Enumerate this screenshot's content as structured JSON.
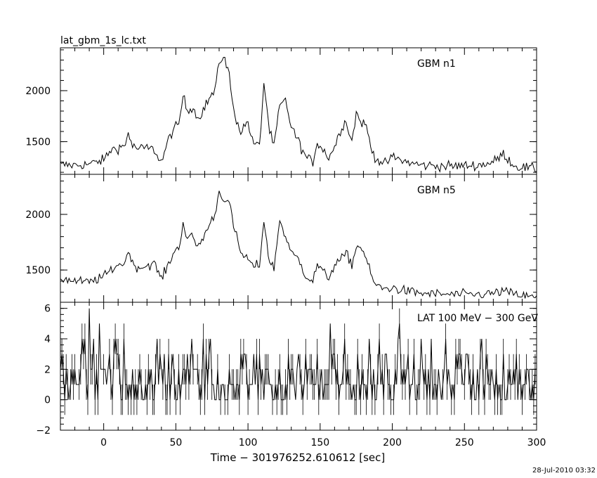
{
  "title": "lat_gbm_1s_lc.txt",
  "xlabel": "Time − 301976252.610612 [sec]",
  "footer_timestamp": "28-Jul-2010 03:32",
  "chart_data": [
    {
      "type": "line",
      "label": "GBM n1",
      "x_range": [
        -30,
        300
      ],
      "ylim": [
        1180,
        2420
      ],
      "yticks": [
        1500,
        2000
      ],
      "ytick_labels": [
        "1500",
        "2000"
      ],
      "x_step": 1,
      "noise": 35,
      "anchors_x": [
        -28,
        -20,
        -10,
        0,
        5,
        10,
        15,
        17,
        20,
        25,
        30,
        35,
        40,
        45,
        48,
        52,
        55,
        58,
        62,
        65,
        70,
        73,
        77,
        80,
        83,
        87,
        90,
        95,
        100,
        103,
        108,
        111,
        115,
        118,
        122,
        126,
        130,
        135,
        140,
        145,
        148,
        152,
        156,
        160,
        165,
        168,
        172,
        175,
        178,
        182,
        186,
        190,
        195,
        200,
        210,
        220,
        240,
        260,
        270,
        277,
        285,
        295,
        300
      ],
      "anchors_y": [
        1270,
        1270,
        1280,
        1320,
        1420,
        1440,
        1460,
        1600,
        1450,
        1430,
        1440,
        1420,
        1300,
        1520,
        1620,
        1660,
        1950,
        1800,
        1850,
        1720,
        1840,
        1920,
        2000,
        2250,
        2360,
        2150,
        1800,
        1600,
        1700,
        1500,
        1450,
        2080,
        1600,
        1450,
        1850,
        1900,
        1650,
        1500,
        1350,
        1300,
        1500,
        1420,
        1350,
        1450,
        1650,
        1700,
        1500,
        1780,
        1700,
        1650,
        1400,
        1320,
        1280,
        1350,
        1300,
        1270,
        1260,
        1270,
        1300,
        1380,
        1260,
        1240,
        1230
      ]
    },
    {
      "type": "line",
      "label": "GBM n5",
      "x_range": [
        -30,
        300
      ],
      "ylim": [
        1210,
        2360
      ],
      "yticks": [
        1500,
        2000
      ],
      "ytick_labels": [
        "1500",
        "2000"
      ],
      "x_step": 1,
      "noise": 30,
      "anchors_x": [
        -28,
        -20,
        -10,
        0,
        5,
        10,
        15,
        17,
        20,
        25,
        30,
        35,
        40,
        45,
        48,
        52,
        55,
        58,
        62,
        65,
        70,
        73,
        77,
        80,
        83,
        87,
        90,
        95,
        100,
        103,
        108,
        111,
        115,
        118,
        122,
        126,
        130,
        135,
        140,
        145,
        148,
        152,
        156,
        160,
        165,
        168,
        172,
        175,
        178,
        182,
        186,
        190,
        195,
        200,
        210,
        220,
        240,
        260,
        270,
        277,
        285,
        295,
        300
      ],
      "anchors_y": [
        1420,
        1400,
        1390,
        1440,
        1500,
        1550,
        1560,
        1700,
        1550,
        1520,
        1540,
        1560,
        1420,
        1550,
        1650,
        1700,
        1920,
        1780,
        1800,
        1700,
        1820,
        1900,
        2000,
        2200,
        2150,
        2100,
        1900,
        1650,
        1600,
        1530,
        1550,
        1950,
        1560,
        1520,
        1950,
        1800,
        1650,
        1600,
        1450,
        1400,
        1550,
        1480,
        1430,
        1550,
        1600,
        1650,
        1550,
        1700,
        1720,
        1600,
        1420,
        1350,
        1330,
        1340,
        1310,
        1290,
        1280,
        1280,
        1290,
        1310,
        1280,
        1260,
        1250
      ]
    },
    {
      "type": "line",
      "label": "LAT 100 MeV − 300 GeV",
      "x_range": [
        -30,
        300
      ],
      "ylim": [
        -2,
        6.4
      ],
      "yticks": [
        -2,
        0,
        2,
        4,
        6
      ],
      "ytick_labels": [
        "−2",
        "0",
        "2",
        "4",
        "6"
      ],
      "xticks": [
        0,
        50,
        100,
        150,
        200,
        250,
        300
      ],
      "xtick_labels": [
        "0",
        "50",
        "100",
        "150",
        "200",
        "250",
        "300"
      ],
      "x_step": 1,
      "count_rate_mean": 1.5,
      "count_scale": 2,
      "errbar_half": 1
    }
  ]
}
